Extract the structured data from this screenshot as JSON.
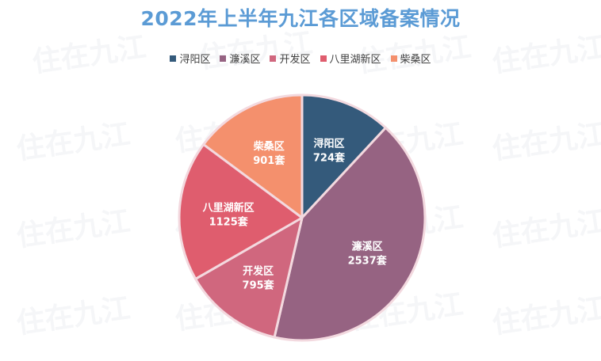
{
  "title": "2022年上半年九江各区域备案情况",
  "colors": {
    "title": "#5b9bd5",
    "slice_border": "#f3d9df"
  },
  "watermark_text": "住在九江",
  "chart_data": {
    "type": "pie",
    "title": "2022年上半年九江各区域备案情况",
    "legend_position": "top",
    "start_angle_deg": 0,
    "direction": "clockwise",
    "unit": "套",
    "slices": [
      {
        "name": "浔阳区",
        "value": 724,
        "value_label": "724套",
        "color": "#345a7b"
      },
      {
        "name": "濂溪区",
        "value": 2537,
        "value_label": "2537套",
        "color": "#966382"
      },
      {
        "name": "开发区",
        "value": 795,
        "value_label": "795套",
        "color": "#d0677e"
      },
      {
        "name": "八里湖新区",
        "value": 1125,
        "value_label": "1125套",
        "color": "#df5d6e"
      },
      {
        "name": "柴桑区",
        "value": 901,
        "value_label": "901套",
        "color": "#f4906d"
      }
    ]
  }
}
